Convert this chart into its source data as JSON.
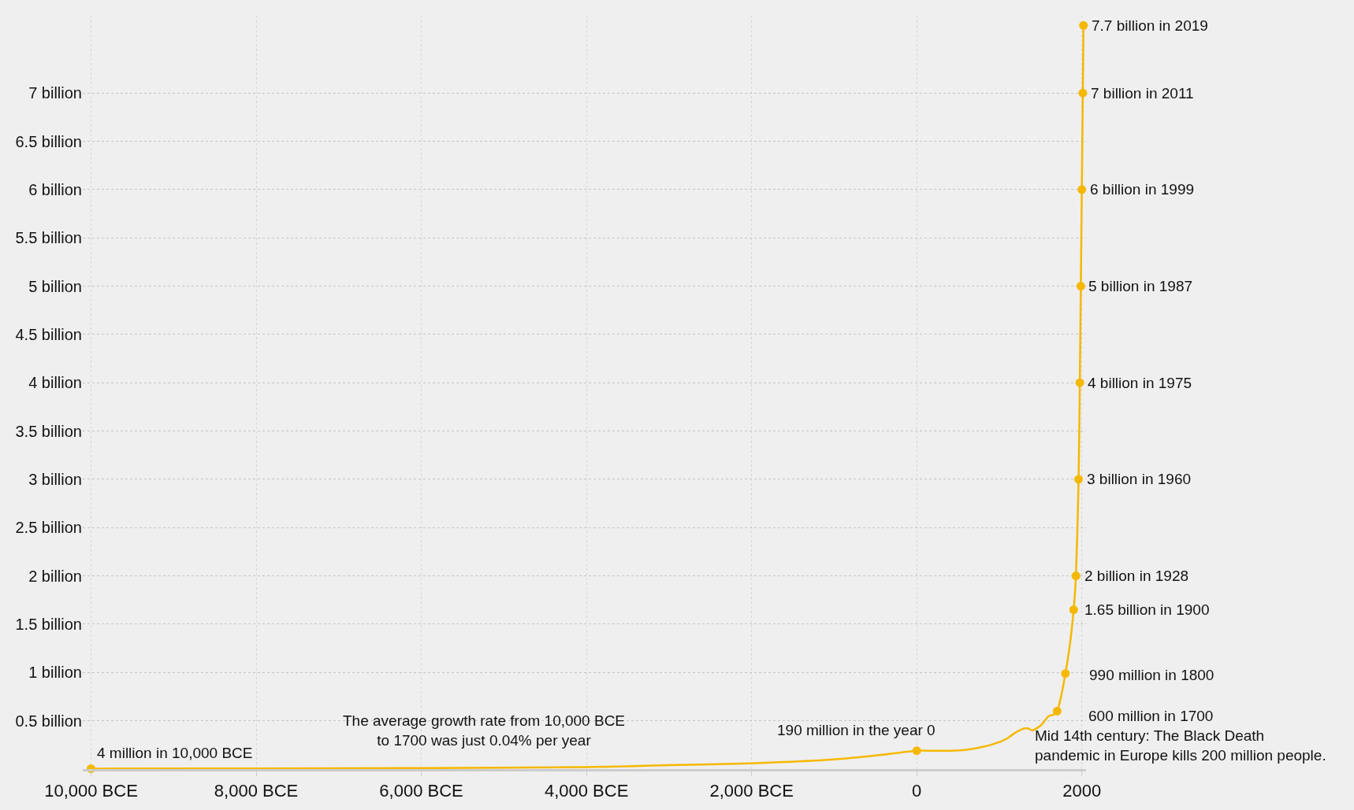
{
  "chart_data": {
    "type": "line",
    "series": [
      {
        "color": "#f5b800",
        "marker": "none",
        "x": [
          -10000,
          -8000,
          -6000,
          -4000,
          -3000,
          -2000,
          -1000,
          -500,
          0,
          200,
          400,
          600,
          800,
          1000,
          1100,
          1200,
          1300,
          1350,
          1400,
          1500,
          1600,
          1650,
          1700,
          1750,
          1800,
          1850,
          1900,
          1928,
          1960,
          1975,
          1987,
          1999,
          2011,
          2019
        ],
        "values": [
          0.004,
          0.006,
          0.01,
          0.02,
          0.04,
          0.06,
          0.1,
          0.14,
          0.19,
          0.19,
          0.19,
          0.2,
          0.23,
          0.28,
          0.32,
          0.38,
          0.42,
          0.42,
          0.4,
          0.45,
          0.55,
          0.56,
          0.6,
          0.76,
          0.99,
          1.26,
          1.65,
          2,
          3,
          4,
          5,
          6,
          7,
          7.7
        ]
      },
      {
        "type": "scatter",
        "color": "#f5b800",
        "marker": "circle",
        "x": [
          -10000,
          0,
          1700,
          1800,
          1900,
          1928,
          1960,
          1975,
          1987,
          1999,
          2011,
          2019
        ],
        "values": [
          0.004,
          0.19,
          0.6,
          0.99,
          1.65,
          2,
          3,
          4,
          5,
          6,
          7,
          7.7
        ]
      }
    ],
    "xlim": [
      -10100,
      2050
    ],
    "xticks": [
      {
        "value": -10000,
        "label": "10,000 BCE"
      },
      {
        "value": -8000,
        "label": "8,000 BCE"
      },
      {
        "value": -6000,
        "label": "6,000 BCE"
      },
      {
        "value": -4000,
        "label": "4,000 BCE"
      },
      {
        "value": -2000,
        "label": "2,000 BCE"
      },
      0,
      2000
    ],
    "ylim": [
      0,
      7.8
    ],
    "yticks": [
      {
        "value": 0.5,
        "label": "0.5 billion"
      },
      {
        "value": 1,
        "label": "1 billion"
      },
      {
        "value": 1.5,
        "label": "1.5 billion"
      },
      {
        "value": 2,
        "label": "2 billion"
      },
      {
        "value": 2.5,
        "label": "2.5 billion"
      },
      {
        "value": 3,
        "label": "3 billion"
      },
      {
        "value": 3.5,
        "label": "3.5 billion"
      },
      {
        "value": 4,
        "label": "4 billion"
      },
      {
        "value": 4.5,
        "label": "4.5 billion"
      },
      {
        "value": 5,
        "label": "5 billion"
      },
      {
        "value": 5.5,
        "label": "5.5 billion"
      },
      {
        "value": 6,
        "label": "6 billion"
      },
      {
        "value": 6.5,
        "label": "6.5 billion"
      },
      {
        "value": 7,
        "label": "7 billion"
      }
    ],
    "grid": true,
    "annotations": [
      {
        "text": "4 million in 10,000 BCE",
        "x": -10000,
        "y": 0.004
      },
      {
        "text": "190 million in the year 0",
        "x": 0,
        "y": 0.19
      },
      {
        "text": "600 million in 1700",
        "x": 1700,
        "y": 0.6
      },
      {
        "text": "990 million in 1800",
        "x": 1800,
        "y": 0.99
      },
      {
        "text": "1.65 billion in 1900",
        "x": 1900,
        "y": 1.65
      },
      {
        "text": "2 billion in 1928",
        "x": 1928,
        "y": 2
      },
      {
        "text": "3 billion in 1960",
        "x": 1960,
        "y": 3
      },
      {
        "text": "4 billion in 1975",
        "x": 1975,
        "y": 4
      },
      {
        "text": "5 billion in 1987",
        "x": 1987,
        "y": 5
      },
      {
        "text": "6 billion in 1999",
        "x": 1999,
        "y": 6
      },
      {
        "text": "7 billion in 2011",
        "x": 2011,
        "y": 7
      },
      {
        "text": "7.7 billion in 2019",
        "x": 2019,
        "y": 7.7
      },
      "The average growth rate from 10,000 BCE\nto 1700 was just 0.04% per year",
      "Mid 14th century: The Black Death\npandemic in Europe kills 200 million people."
    ]
  }
}
